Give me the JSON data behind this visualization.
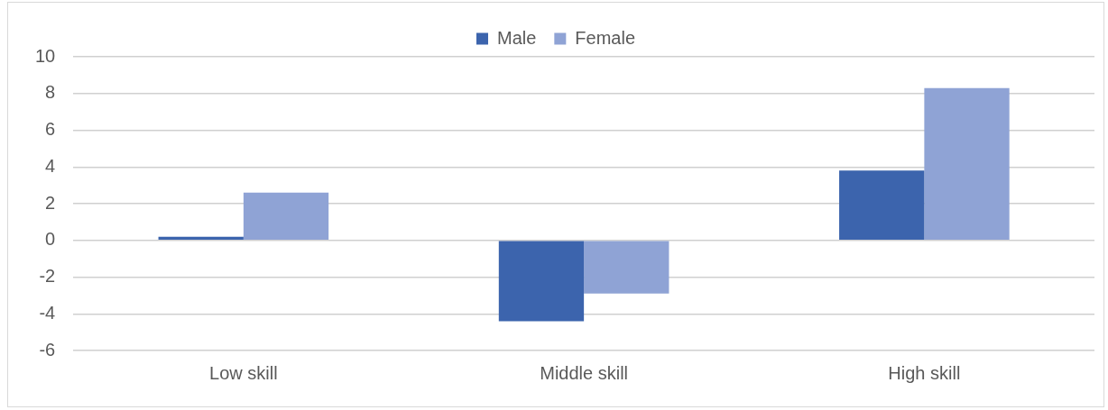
{
  "chart_data": {
    "type": "bar",
    "categories": [
      "Low skill",
      "Middle skill",
      "High skill"
    ],
    "series": [
      {
        "name": "Male",
        "color": "#3c64ad",
        "values": [
          0.2,
          -4.4,
          3.8
        ]
      },
      {
        "name": "Female",
        "color": "#8fa3d5",
        "values": [
          2.6,
          -2.9,
          8.3
        ]
      }
    ],
    "ylim": [
      -6,
      10
    ],
    "yticks": [
      -6,
      -4,
      -2,
      0,
      2,
      4,
      6,
      8,
      10
    ],
    "grid": "y",
    "legend": "top"
  }
}
